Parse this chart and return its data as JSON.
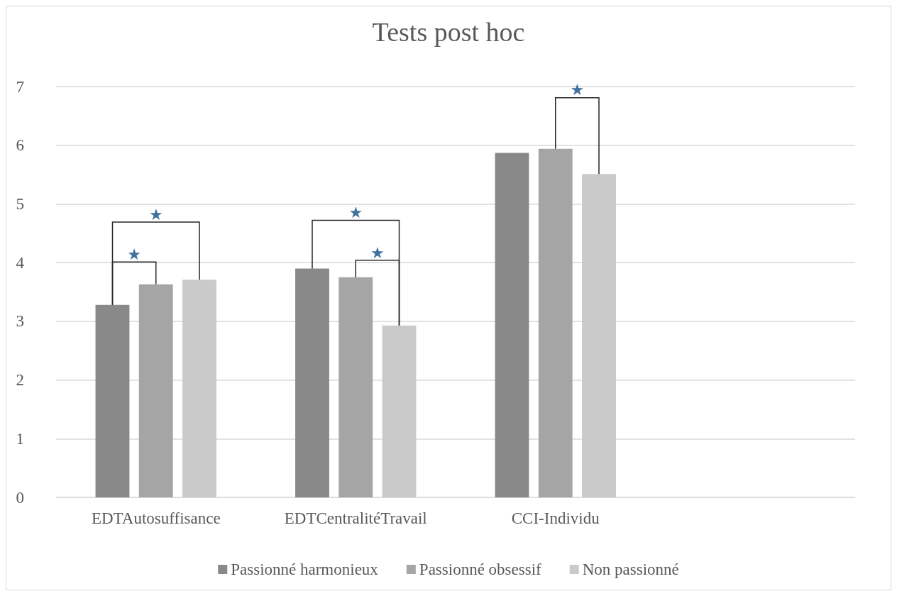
{
  "chart_data": {
    "type": "bar",
    "title": "Tests post hoc",
    "categories": [
      "EDTAutosuffisance",
      "EDTCentralitéTravail",
      "CCI-Individu",
      null
    ],
    "series": [
      {
        "name": "Passionné harmonieux",
        "color": "#898989",
        "values": [
          3.28,
          3.9,
          5.87,
          null
        ]
      },
      {
        "name": "Passionné obsessif",
        "color": "#a5a5a5",
        "values": [
          3.63,
          3.75,
          5.94,
          null
        ]
      },
      {
        "name": "Non passionné",
        "color": "#cacaca",
        "values": [
          3.71,
          2.93,
          5.51,
          null
        ]
      }
    ],
    "ylim": [
      0,
      7
    ],
    "yticks": [
      0,
      1,
      2,
      3,
      4,
      5,
      6,
      7
    ],
    "grid": "y",
    "legend": "bottom",
    "annotations": [
      "★",
      "★",
      "★",
      "★",
      "★"
    ]
  }
}
